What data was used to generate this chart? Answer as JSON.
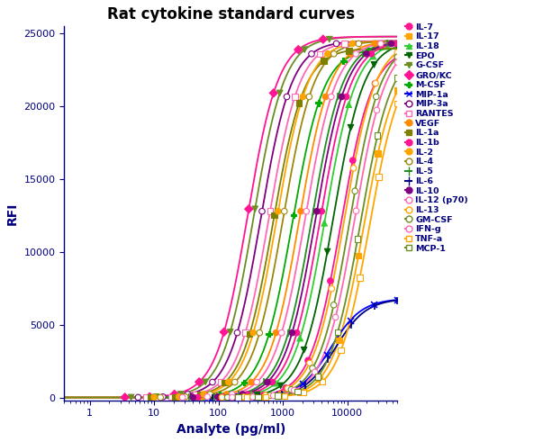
{
  "title": "Rat cytokine standard curves",
  "xlabel": "Analyte (pg/ml)",
  "ylabel": "RFI",
  "background_color": "#ffffff",
  "title_color": "#000000",
  "axis_color": "#000080",
  "yticks": [
    0,
    5000,
    10000,
    15000,
    20000,
    25000
  ],
  "xtick_vals": [
    1,
    10,
    100,
    1000,
    10000
  ],
  "xtick_labels": [
    "1",
    "10",
    "100",
    "1000",
    "10000"
  ],
  "xlim": [
    0.4,
    80000
  ],
  "ylim": [
    0,
    25000
  ],
  "curves": [
    {
      "name": "IL-7",
      "color": "#FF1493",
      "marker": "o",
      "filled": true,
      "line_color": "#FF1493",
      "ec50": 8000,
      "ymax": 24000,
      "hill": 1.8
    },
    {
      "name": "IL-17",
      "color": "#FFA500",
      "marker": "s",
      "filled": true,
      "line_color": "#FFA500",
      "ec50": 18000,
      "ymax": 23500,
      "hill": 1.8
    },
    {
      "name": "IL-18",
      "color": "#32CD32",
      "marker": "^",
      "filled": true,
      "line_color": "#32CD32",
      "ec50": 4500,
      "ymax": 24500,
      "hill": 1.8
    },
    {
      "name": "EPO",
      "color": "#006400",
      "marker": "v",
      "filled": true,
      "line_color": "#006400",
      "ec50": 6000,
      "ymax": 24500,
      "hill": 1.8
    },
    {
      "name": "G-CSF",
      "color": "#6B8E23",
      "marker": "v",
      "filled": true,
      "line_color": "#6B8E23",
      "ec50": 350,
      "ymax": 24800,
      "hill": 1.8
    },
    {
      "name": "GRO/KC",
      "color": "#FF1493",
      "marker": "D",
      "filled": true,
      "line_color": "#FF1493",
      "ec50": 280,
      "ymax": 24800,
      "hill": 1.8
    },
    {
      "name": "M-CSF",
      "color": "#00AA00",
      "marker": "P",
      "filled": true,
      "line_color": "#00AA00",
      "ec50": 1400,
      "ymax": 24000,
      "hill": 1.8
    },
    {
      "name": "MIP-1a",
      "color": "#0000FF",
      "marker": "x",
      "filled": true,
      "line_color": "#0000FF",
      "ec50": 5500,
      "ymax": 6800,
      "hill": 1.8
    },
    {
      "name": "MIP-3a",
      "color": "#800080",
      "marker": "o",
      "filled": false,
      "line_color": "#800080",
      "ec50": 450,
      "ymax": 24500,
      "hill": 1.8
    },
    {
      "name": "RANTES",
      "color": "#FF69B4",
      "marker": "s",
      "filled": false,
      "line_color": "#FF69B4",
      "ec50": 600,
      "ymax": 24500,
      "hill": 1.8
    },
    {
      "name": "VEGF",
      "color": "#FF8C00",
      "marker": "o",
      "filled": true,
      "line_color": "#FF8C00",
      "ec50": 1800,
      "ymax": 24500,
      "hill": 1.8
    },
    {
      "name": "IL-1a",
      "color": "#808000",
      "marker": "s",
      "filled": true,
      "line_color": "#808000",
      "ec50": 700,
      "ymax": 24000,
      "hill": 1.8
    },
    {
      "name": "IL-1b",
      "color": "#FF1493",
      "marker": "o",
      "filled": true,
      "line_color": "#FF1493",
      "ec50": 3800,
      "ymax": 24500,
      "hill": 1.8
    },
    {
      "name": "IL-2",
      "color": "#FFA500",
      "marker": "o",
      "filled": true,
      "line_color": "#FFA500",
      "ec50": 800,
      "ymax": 24500,
      "hill": 1.8
    },
    {
      "name": "IL-4",
      "color": "#9B870C",
      "marker": "o",
      "filled": false,
      "line_color": "#9B870C",
      "ec50": 1000,
      "ymax": 24500,
      "hill": 1.8
    },
    {
      "name": "IL-5",
      "color": "#228B22",
      "marker": "|",
      "filled": true,
      "line_color": "#228B22",
      "ec50": 2800,
      "ymax": 24500,
      "hill": 1.8
    },
    {
      "name": "IL-6",
      "color": "#000080",
      "marker": "|",
      "filled": true,
      "line_color": "#000080",
      "ec50": 6500,
      "ymax": 6800,
      "hill": 1.8
    },
    {
      "name": "IL-10",
      "color": "#800080",
      "marker": "o",
      "filled": true,
      "line_color": "#800080",
      "ec50": 3200,
      "ymax": 24500,
      "hill": 1.8
    },
    {
      "name": "IL-12 (p70)",
      "color": "#FF69B4",
      "marker": "o",
      "filled": false,
      "line_color": "#FF69B4",
      "ec50": 2200,
      "ymax": 24500,
      "hill": 1.8
    },
    {
      "name": "IL-13",
      "color": "#FFA500",
      "marker": "o",
      "filled": false,
      "line_color": "#FFA500",
      "ec50": 9000,
      "ymax": 24500,
      "hill": 1.8
    },
    {
      "name": "GM-CSF",
      "color": "#6B8E23",
      "marker": "o",
      "filled": false,
      "line_color": "#6B8E23",
      "ec50": 11000,
      "ymax": 24500,
      "hill": 1.8
    },
    {
      "name": "IFN-g",
      "color": "#FF69B4",
      "marker": "o",
      "filled": false,
      "line_color": "#FF69B4",
      "ec50": 13000,
      "ymax": 24500,
      "hill": 1.8
    },
    {
      "name": "TNF-a",
      "color": "#FFA500",
      "marker": "s",
      "filled": false,
      "line_color": "#FFA500",
      "ec50": 22000,
      "ymax": 23500,
      "hill": 1.8
    },
    {
      "name": "MCP-1",
      "color": "#6B8E23",
      "marker": "s",
      "filled": false,
      "line_color": "#6B8E23",
      "ec50": 16000,
      "ymax": 24000,
      "hill": 1.8
    }
  ]
}
